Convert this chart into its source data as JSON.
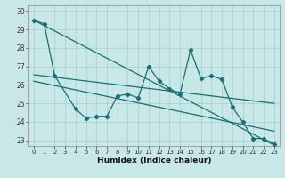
{
  "xlabel": "Humidex (Indice chaleur)",
  "background_color": "#c8e8e8",
  "grid_color": "#a8cccc",
  "line_color": "#1a7070",
  "ylim": [
    22.7,
    30.3
  ],
  "yticks": [
    23,
    24,
    25,
    26,
    27,
    28,
    29,
    30
  ],
  "xticks": [
    0,
    1,
    2,
    3,
    4,
    5,
    6,
    7,
    8,
    9,
    10,
    11,
    12,
    13,
    14,
    15,
    16,
    17,
    18,
    19,
    20,
    21,
    22,
    23
  ],
  "straight_line1": {
    "x": [
      0,
      23
    ],
    "y": [
      29.5,
      22.75
    ]
  },
  "straight_line2": {
    "x": [
      0,
      23
    ],
    "y": [
      26.55,
      25.0
    ]
  },
  "straight_line3": {
    "x": [
      0,
      23
    ],
    "y": [
      26.2,
      23.5
    ]
  },
  "jagged_x": [
    0,
    1,
    2,
    4,
    5,
    6,
    7,
    8,
    9,
    10,
    11,
    12,
    13,
    14,
    15,
    16,
    17,
    18,
    19,
    20,
    21,
    22,
    23
  ],
  "jagged_y": [
    29.5,
    29.3,
    26.5,
    24.7,
    24.2,
    24.3,
    24.3,
    25.4,
    25.5,
    25.3,
    27.0,
    26.2,
    25.8,
    25.5,
    27.9,
    26.35,
    26.5,
    26.3,
    24.8,
    24.0,
    23.1,
    23.1,
    22.8
  ]
}
